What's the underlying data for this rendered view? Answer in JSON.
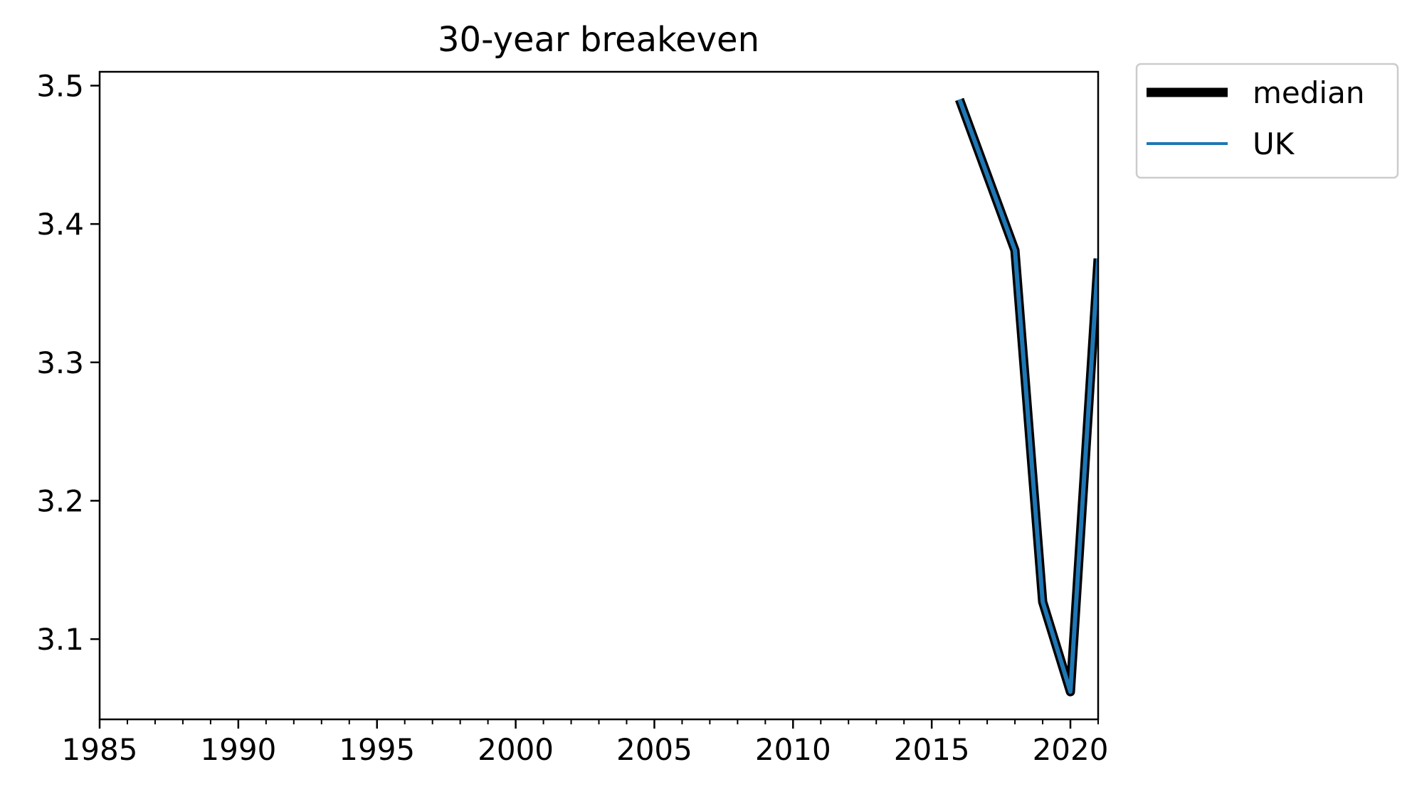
{
  "chart_data": {
    "type": "line",
    "title": "30-year breakeven",
    "xlabel": "",
    "ylabel": "",
    "xlim": [
      1985,
      2021
    ],
    "ylim": [
      3.042,
      3.51
    ],
    "x_ticks_major": [
      1985,
      1990,
      1995,
      2000,
      2005,
      2010,
      2015,
      2020
    ],
    "x_ticks_minor_step": 1,
    "y_ticks": [
      3.1,
      3.2,
      3.3,
      3.4,
      3.5
    ],
    "y_tick_labels": [
      "3.1",
      "3.2",
      "3.3",
      "3.4",
      "3.5"
    ],
    "grid": false,
    "legend_position": "outside-top-right",
    "series": [
      {
        "name": "median",
        "color": "#000000",
        "style": "thick",
        "x": [
          2016,
          2018,
          2019,
          2020,
          2021
        ],
        "y": [
          3.49,
          3.381,
          3.127,
          3.062,
          3.375
        ]
      },
      {
        "name": "UK",
        "color": "#1f77b4",
        "style": "thin",
        "x": [
          2016,
          2018,
          2019,
          2020,
          2021
        ],
        "y": [
          3.49,
          3.381,
          3.127,
          3.062,
          3.375
        ]
      }
    ]
  }
}
